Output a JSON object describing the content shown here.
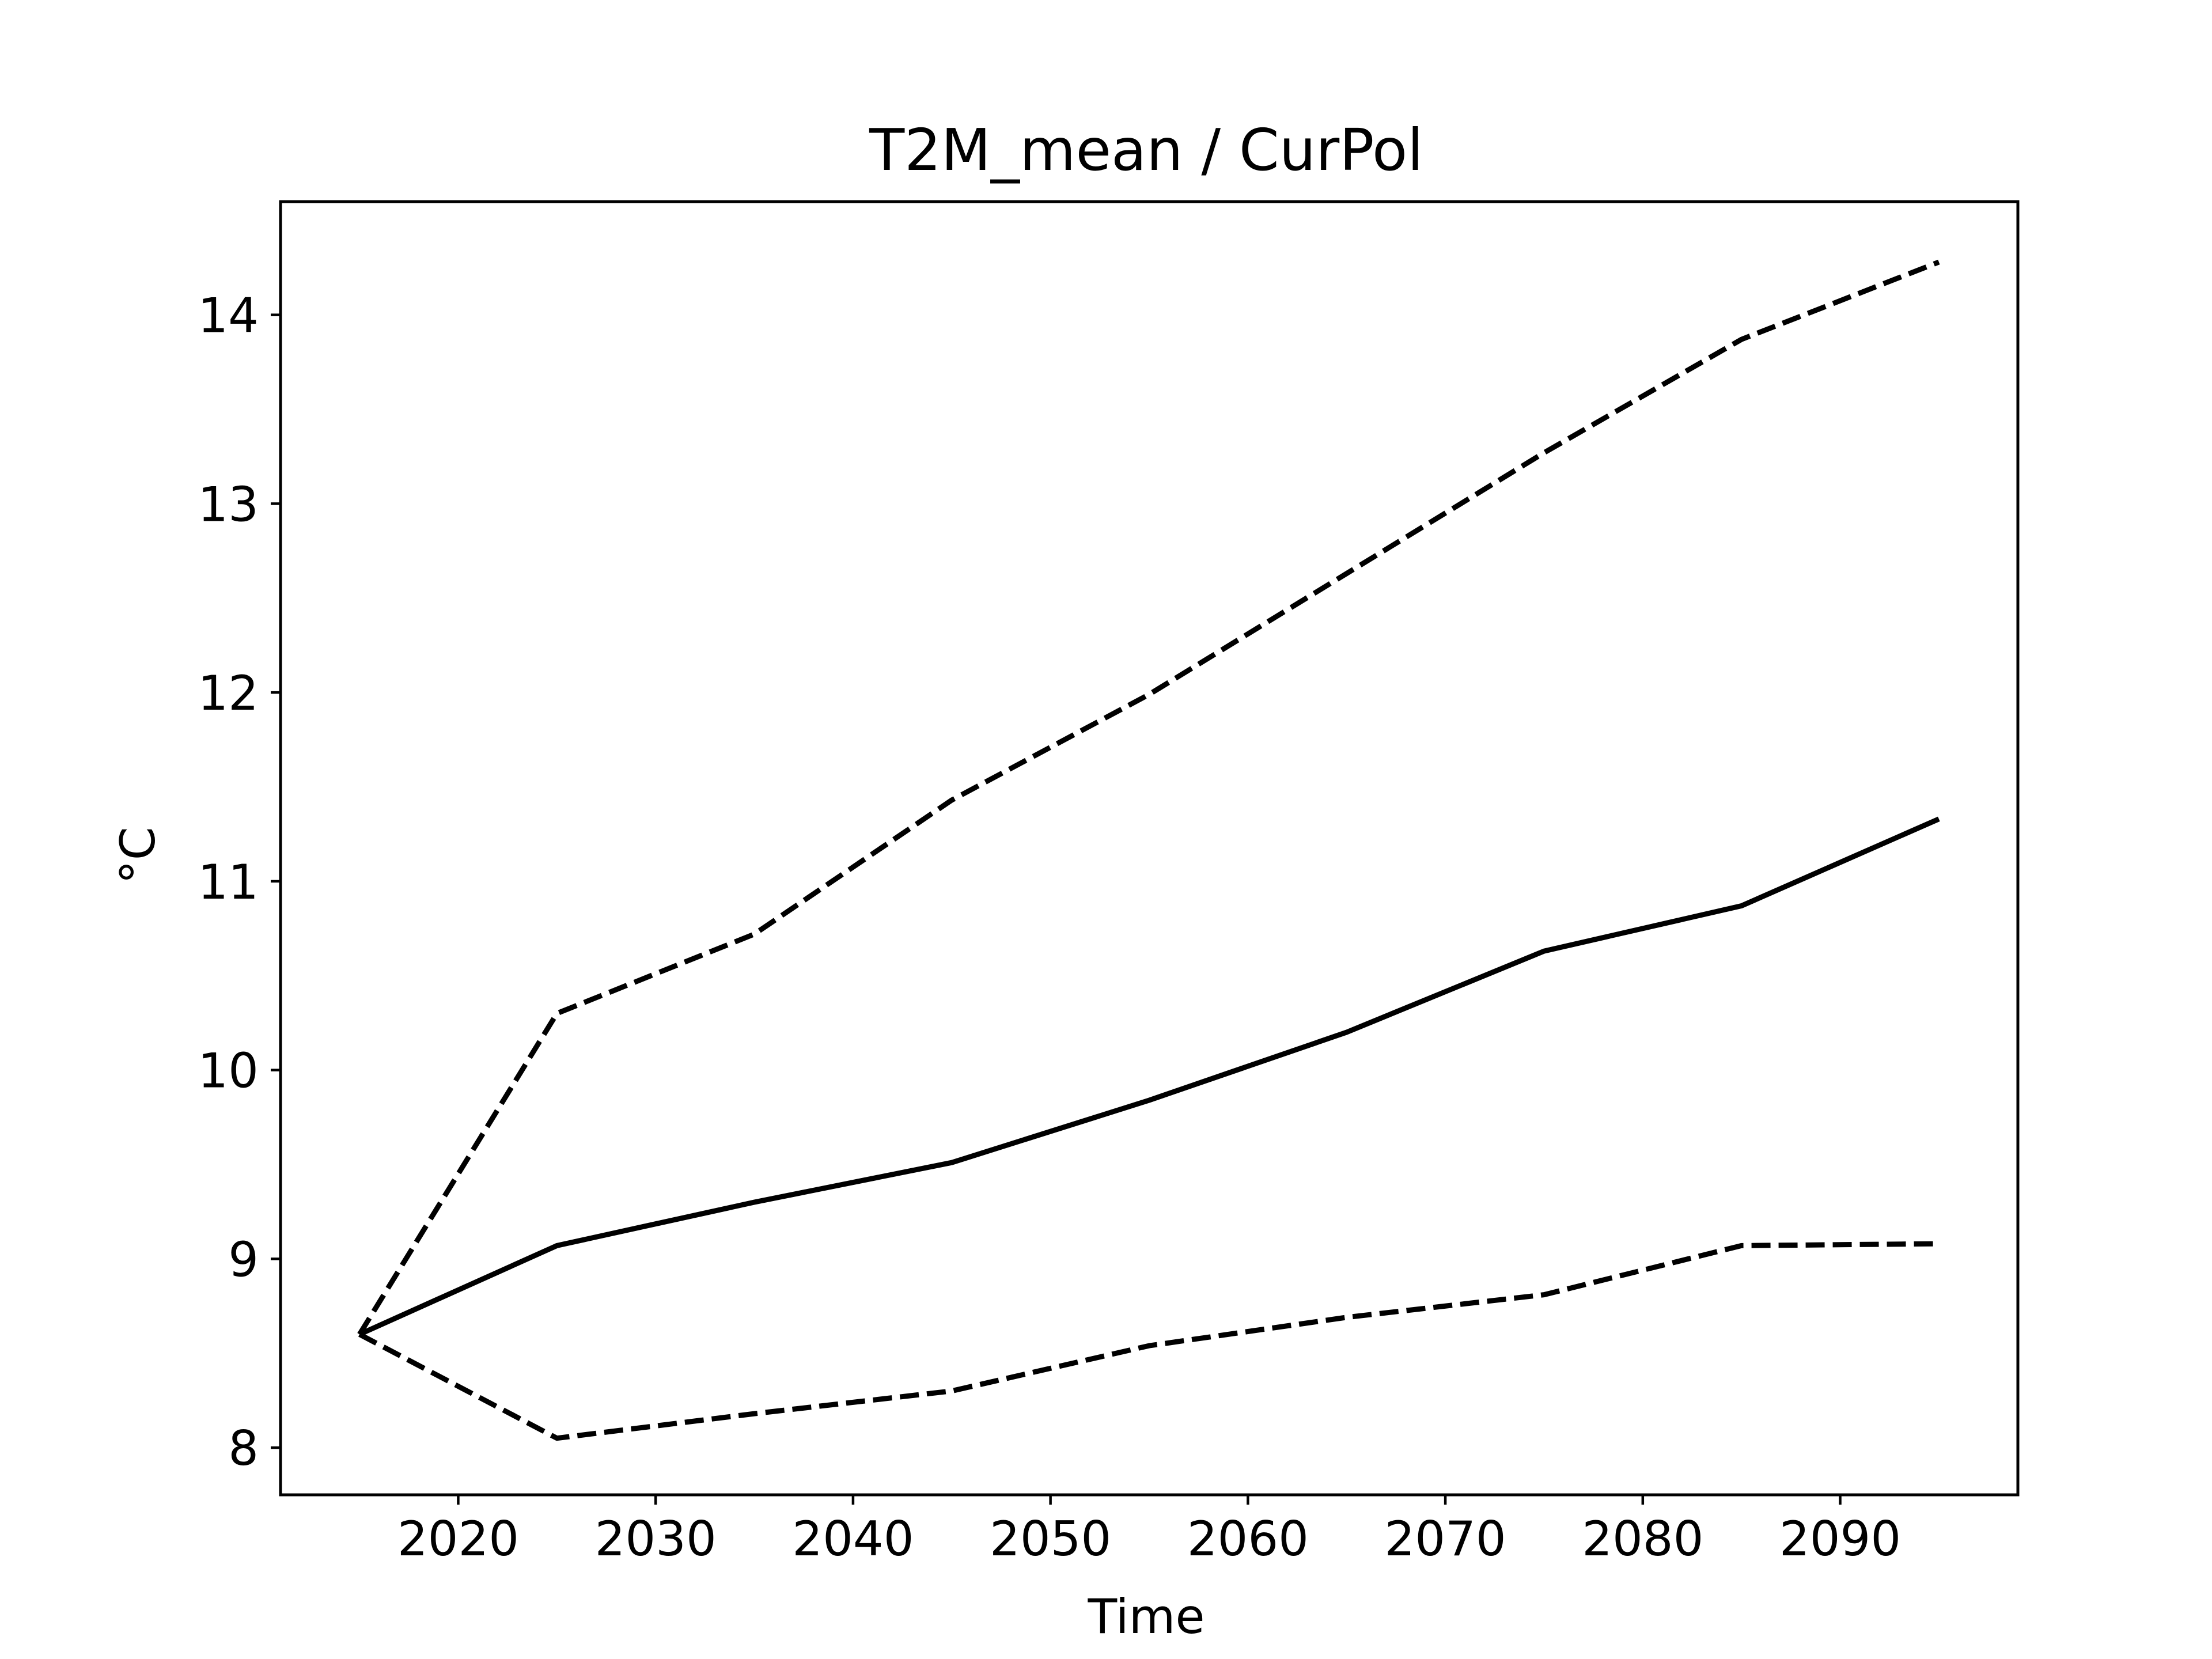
{
  "chart_data": {
    "type": "line",
    "title": "T2M_mean / CurPol",
    "xlabel": "Time",
    "ylabel": "°C",
    "xlim": [
      2011,
      2099
    ],
    "ylim": [
      7.75,
      14.6
    ],
    "xticks": [
      2020,
      2030,
      2040,
      2050,
      2060,
      2070,
      2080,
      2090
    ],
    "yticks": [
      8,
      9,
      10,
      11,
      12,
      13,
      14
    ],
    "grid": false,
    "legend": "none",
    "x": [
      2015,
      2025,
      2035,
      2045,
      2055,
      2065,
      2075,
      2085,
      2095
    ],
    "series": [
      {
        "style": "dashed",
        "color": "#000000",
        "values": [
          8.6,
          10.3,
          10.72,
          11.43,
          11.99,
          12.63,
          13.27,
          13.87,
          14.28
        ]
      },
      {
        "style": "solid",
        "color": "#000000",
        "values": [
          8.6,
          9.07,
          9.3,
          9.51,
          9.84,
          10.2,
          10.63,
          10.87,
          11.33
        ]
      },
      {
        "style": "dashed",
        "color": "#000000",
        "values": [
          8.6,
          8.05,
          8.18,
          8.3,
          8.54,
          8.69,
          8.81,
          9.07,
          9.08
        ]
      }
    ]
  }
}
